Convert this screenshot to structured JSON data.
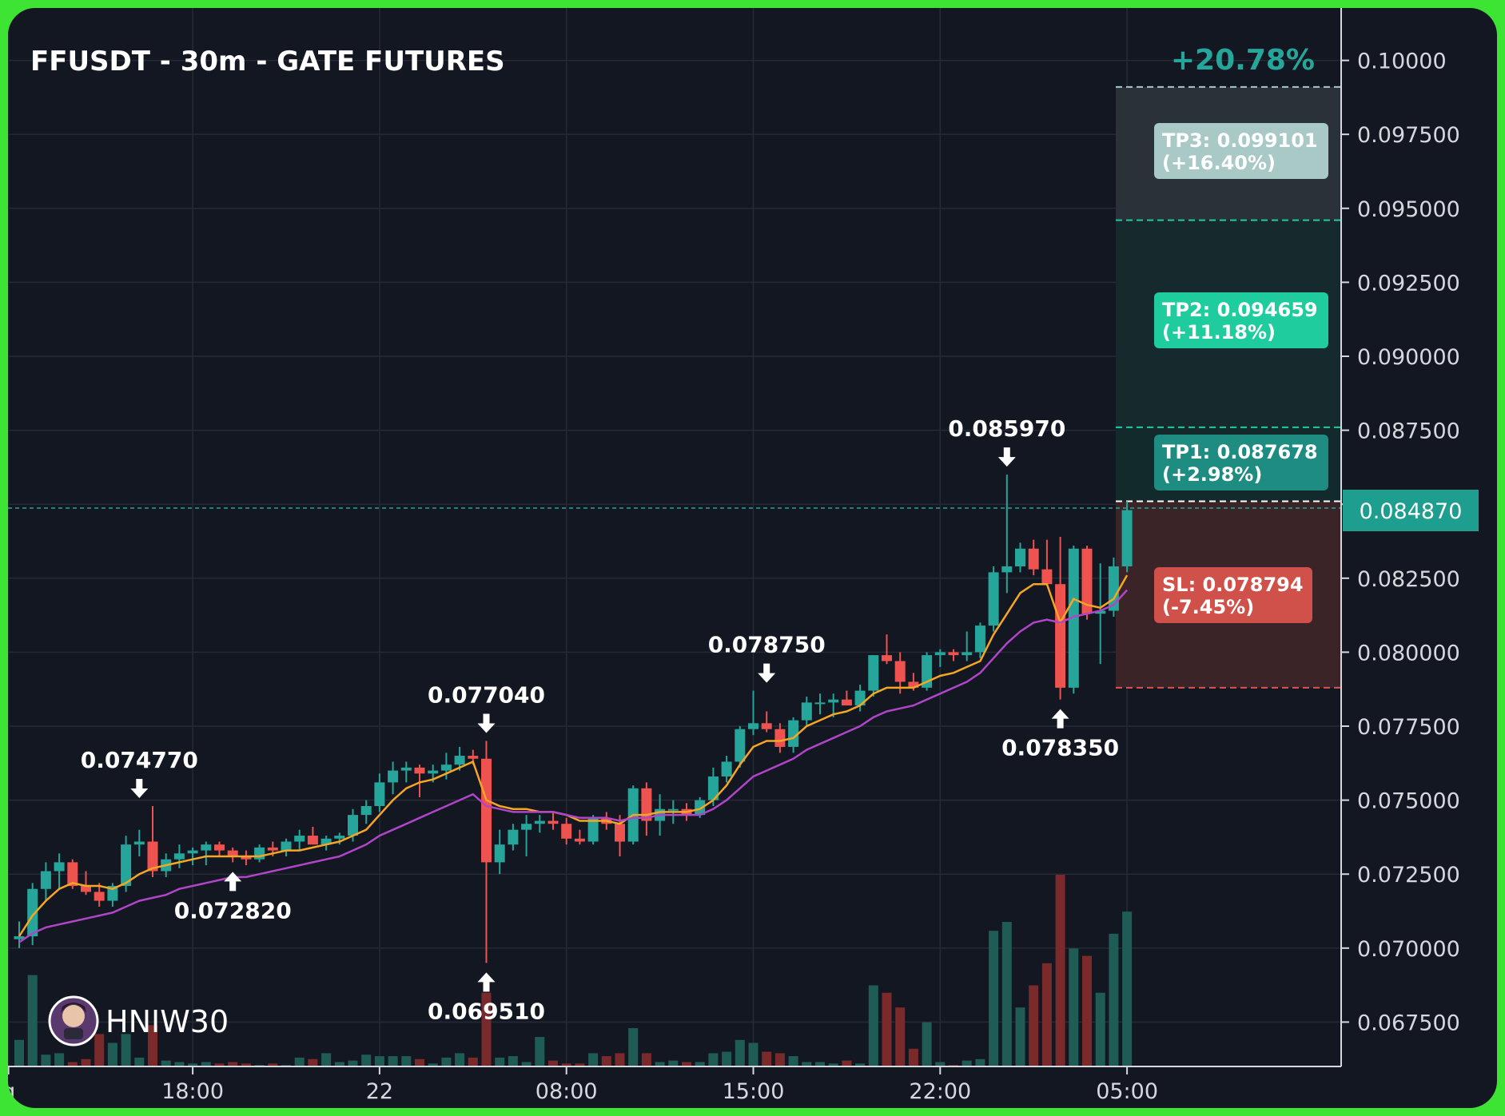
{
  "title": "FFUSDT - 30m - GATE FUTURES",
  "watermark": "HNIW30",
  "colors": {
    "up": "#26a69a",
    "down": "#ef5350",
    "ema_fast": "#f5a623",
    "ema_slow": "#b045c8",
    "tp": "#1fcc9e",
    "sl": "#e0524d",
    "background": "#131722"
  },
  "chart_data": {
    "type": "candlestick",
    "symbol": "FFUSDT",
    "timeframe": "30m",
    "exchange": "GATE FUTURES",
    "ylim": [
      0.066,
      0.1015
    ],
    "y_ticks": [
      "0.10000",
      "0.097500",
      "0.095000",
      "0.092500",
      "0.090000",
      "0.087500",
      "0.085000",
      "0.082500",
      "0.080000",
      "0.077500",
      "0.075000",
      "0.072500",
      "0.070000",
      "0.067500"
    ],
    "x_ticks": [
      {
        "label": "g",
        "index": -0.8
      },
      {
        "label": "18:00",
        "index": 13
      },
      {
        "label": "22",
        "index": 27
      },
      {
        "label": "08:00",
        "index": 41
      },
      {
        "label": "15:00",
        "index": 55
      },
      {
        "label": "22:00",
        "index": 69
      },
      {
        "label": "05:00",
        "index": 83
      }
    ],
    "last_price": "0.084870",
    "candles": [
      [
        0.0703,
        0.0709,
        0.07,
        0.0704,
        0.18
      ],
      [
        0.0704,
        0.0722,
        0.0701,
        0.072,
        0.62
      ],
      [
        0.072,
        0.0729,
        0.0716,
        0.0726,
        0.08
      ],
      [
        0.0726,
        0.0732,
        0.072,
        0.0729,
        0.09
      ],
      [
        0.0729,
        0.073,
        0.072,
        0.0721,
        0.03
      ],
      [
        0.0721,
        0.0726,
        0.0718,
        0.0719,
        0.05
      ],
      [
        0.0719,
        0.0722,
        0.0714,
        0.0716,
        0.22
      ],
      [
        0.0716,
        0.0722,
        0.0714,
        0.0721,
        0.16
      ],
      [
        0.0721,
        0.0738,
        0.0719,
        0.0735,
        0.22
      ],
      [
        0.0735,
        0.074,
        0.0731,
        0.0736,
        0.06
      ],
      [
        0.0736,
        0.0748,
        0.0724,
        0.0726,
        0.28
      ],
      [
        0.0726,
        0.0732,
        0.0724,
        0.073,
        0.04
      ],
      [
        0.073,
        0.0735,
        0.0727,
        0.0732,
        0.03
      ],
      [
        0.0732,
        0.0734,
        0.0728,
        0.0733,
        0.02
      ],
      [
        0.0733,
        0.0736,
        0.0728,
        0.0735,
        0.03
      ],
      [
        0.0735,
        0.0736,
        0.0731,
        0.0733,
        0.02
      ],
      [
        0.0733,
        0.0734,
        0.0729,
        0.0731,
        0.03
      ],
      [
        0.0731,
        0.0733,
        0.0728,
        0.073,
        0.02
      ],
      [
        0.073,
        0.0735,
        0.0729,
        0.0734,
        0.01
      ],
      [
        0.0734,
        0.0736,
        0.0731,
        0.0733,
        0.02
      ],
      [
        0.0733,
        0.0737,
        0.0731,
        0.0736,
        0.01
      ],
      [
        0.0736,
        0.074,
        0.0733,
        0.0738,
        0.06
      ],
      [
        0.0738,
        0.0741,
        0.0735,
        0.0735,
        0.05
      ],
      [
        0.0735,
        0.0738,
        0.0733,
        0.0737,
        0.09
      ],
      [
        0.0737,
        0.0739,
        0.0735,
        0.0738,
        0.03
      ],
      [
        0.0738,
        0.0747,
        0.0736,
        0.0745,
        0.04
      ],
      [
        0.0745,
        0.075,
        0.0742,
        0.0748,
        0.08
      ],
      [
        0.0748,
        0.0759,
        0.0746,
        0.0756,
        0.07
      ],
      [
        0.0756,
        0.0763,
        0.0752,
        0.076,
        0.07
      ],
      [
        0.076,
        0.0763,
        0.0756,
        0.0761,
        0.07
      ],
      [
        0.0761,
        0.0762,
        0.0751,
        0.0759,
        0.05
      ],
      [
        0.0759,
        0.0762,
        0.0756,
        0.076,
        0.02
      ],
      [
        0.076,
        0.0766,
        0.0757,
        0.0762,
        0.06
      ],
      [
        0.0762,
        0.0768,
        0.076,
        0.0765,
        0.09
      ],
      [
        0.0765,
        0.0767,
        0.0762,
        0.0764,
        0.06
      ],
      [
        0.0764,
        0.077,
        0.0695,
        0.0729,
        0.5
      ],
      [
        0.0729,
        0.074,
        0.0725,
        0.0735,
        0.06
      ],
      [
        0.0735,
        0.0742,
        0.0733,
        0.074,
        0.07
      ],
      [
        0.074,
        0.0745,
        0.0731,
        0.0742,
        0.03
      ],
      [
        0.0742,
        0.0745,
        0.0739,
        0.0743,
        0.2
      ],
      [
        0.0743,
        0.0746,
        0.074,
        0.0742,
        0.04
      ],
      [
        0.0742,
        0.0744,
        0.0735,
        0.0737,
        0.02
      ],
      [
        0.0737,
        0.074,
        0.0735,
        0.0736,
        0.02
      ],
      [
        0.0736,
        0.0745,
        0.0735,
        0.0744,
        0.09
      ],
      [
        0.0744,
        0.0746,
        0.074,
        0.0742,
        0.07
      ],
      [
        0.0742,
        0.0745,
        0.0731,
        0.0736,
        0.09
      ],
      [
        0.0736,
        0.0755,
        0.0735,
        0.0754,
        0.26
      ],
      [
        0.0754,
        0.0756,
        0.0738,
        0.0743,
        0.09
      ],
      [
        0.0743,
        0.0752,
        0.0738,
        0.0747,
        0.03
      ],
      [
        0.0747,
        0.075,
        0.0742,
        0.0747,
        0.04
      ],
      [
        0.0747,
        0.0749,
        0.0743,
        0.0745,
        0.03
      ],
      [
        0.0745,
        0.0751,
        0.0744,
        0.075,
        0.03
      ],
      [
        0.075,
        0.0761,
        0.0748,
        0.0758,
        0.09
      ],
      [
        0.0758,
        0.0765,
        0.0756,
        0.0763,
        0.1
      ],
      [
        0.0763,
        0.0775,
        0.0761,
        0.0774,
        0.18
      ],
      [
        0.0774,
        0.0787,
        0.0772,
        0.0776,
        0.16
      ],
      [
        0.0776,
        0.078,
        0.0773,
        0.0774,
        0.1
      ],
      [
        0.0774,
        0.0776,
        0.0766,
        0.0768,
        0.09
      ],
      [
        0.0768,
        0.0778,
        0.0766,
        0.0777,
        0.07
      ],
      [
        0.0777,
        0.0785,
        0.0775,
        0.0783,
        0.03
      ],
      [
        0.0783,
        0.0786,
        0.0779,
        0.0783,
        0.03
      ],
      [
        0.0783,
        0.0786,
        0.0778,
        0.0784,
        0.02
      ],
      [
        0.0784,
        0.0787,
        0.0782,
        0.0782,
        0.04
      ],
      [
        0.0782,
        0.0789,
        0.078,
        0.0787,
        0.02
      ],
      [
        0.0787,
        0.0799,
        0.0785,
        0.0799,
        0.55
      ],
      [
        0.0799,
        0.0806,
        0.0796,
        0.0797,
        0.5
      ],
      [
        0.0797,
        0.08,
        0.0786,
        0.079,
        0.4
      ],
      [
        0.079,
        0.0793,
        0.0787,
        0.0788,
        0.12
      ],
      [
        0.0788,
        0.08,
        0.0787,
        0.0799,
        0.3
      ],
      [
        0.0799,
        0.0801,
        0.0795,
        0.08,
        0.03
      ],
      [
        0.08,
        0.0801,
        0.0797,
        0.0799,
        0.01
      ],
      [
        0.0799,
        0.0807,
        0.0797,
        0.08,
        0.04
      ],
      [
        0.08,
        0.081,
        0.0798,
        0.0809,
        0.05
      ],
      [
        0.0809,
        0.0829,
        0.0807,
        0.0827,
        0.92
      ],
      [
        0.0827,
        0.086,
        0.082,
        0.0829,
        0.98
      ],
      [
        0.0829,
        0.0837,
        0.0827,
        0.0835,
        0.4
      ],
      [
        0.0835,
        0.0838,
        0.0826,
        0.0828,
        0.55
      ],
      [
        0.0828,
        0.0838,
        0.0826,
        0.0823,
        0.7
      ],
      [
        0.0823,
        0.0839,
        0.0784,
        0.0788,
        1.3
      ],
      [
        0.0788,
        0.0836,
        0.0786,
        0.0835,
        0.8
      ],
      [
        0.0835,
        0.0836,
        0.0811,
        0.0813,
        0.75
      ],
      [
        0.0813,
        0.083,
        0.0796,
        0.0814,
        0.5
      ],
      [
        0.0814,
        0.0832,
        0.0812,
        0.0829,
        0.9
      ],
      [
        0.0829,
        0.0851,
        0.0827,
        0.0848,
        1.05
      ]
    ],
    "ema_fast": [
      0.0704,
      0.0711,
      0.0716,
      0.072,
      0.0722,
      0.0721,
      0.0721,
      0.072,
      0.0722,
      0.0725,
      0.0727,
      0.0728,
      0.0729,
      0.073,
      0.0731,
      0.0731,
      0.0731,
      0.0731,
      0.0731,
      0.0732,
      0.0733,
      0.0733,
      0.0734,
      0.0735,
      0.0736,
      0.0738,
      0.074,
      0.0745,
      0.075,
      0.0754,
      0.0756,
      0.0757,
      0.0759,
      0.0761,
      0.0763,
      0.075,
      0.0748,
      0.0747,
      0.0747,
      0.0746,
      0.0746,
      0.0745,
      0.0743,
      0.0743,
      0.0743,
      0.0742,
      0.0745,
      0.0745,
      0.0746,
      0.0746,
      0.0746,
      0.0747,
      0.075,
      0.0755,
      0.0762,
      0.0768,
      0.077,
      0.077,
      0.0771,
      0.0775,
      0.0777,
      0.0779,
      0.078,
      0.0782,
      0.0786,
      0.0788,
      0.0788,
      0.0788,
      0.079,
      0.0792,
      0.0793,
      0.0795,
      0.0797,
      0.0806,
      0.0813,
      0.082,
      0.0823,
      0.0823,
      0.081,
      0.0818,
      0.0816,
      0.0815,
      0.0818,
      0.0826
    ],
    "ema_slow": [
      0.0702,
      0.0705,
      0.0707,
      0.0708,
      0.0709,
      0.071,
      0.0711,
      0.0712,
      0.0714,
      0.0716,
      0.0717,
      0.0718,
      0.072,
      0.0721,
      0.0722,
      0.0723,
      0.0724,
      0.0724,
      0.0725,
      0.0726,
      0.0727,
      0.0728,
      0.0729,
      0.073,
      0.0731,
      0.0733,
      0.0735,
      0.0738,
      0.074,
      0.0742,
      0.0744,
      0.0746,
      0.0748,
      0.075,
      0.0752,
      0.0748,
      0.0747,
      0.0746,
      0.0746,
      0.0746,
      0.0746,
      0.0745,
      0.0744,
      0.0744,
      0.0744,
      0.0743,
      0.0744,
      0.0744,
      0.0745,
      0.0745,
      0.0745,
      0.0745,
      0.0747,
      0.075,
      0.0754,
      0.0758,
      0.076,
      0.0762,
      0.0764,
      0.0767,
      0.0769,
      0.0771,
      0.0773,
      0.0775,
      0.0778,
      0.078,
      0.0781,
      0.0782,
      0.0784,
      0.0786,
      0.0788,
      0.079,
      0.0793,
      0.0798,
      0.0803,
      0.0807,
      0.081,
      0.0811,
      0.081,
      0.0812,
      0.0813,
      0.0814,
      0.0816,
      0.0821
    ],
    "annotations": [
      {
        "label": "0.074770",
        "index": 9,
        "price": 0.0748,
        "kind": "high"
      },
      {
        "label": "0.072820",
        "index": 16,
        "price": 0.0729,
        "kind": "low"
      },
      {
        "label": "0.077040",
        "index": 35,
        "price": 0.077,
        "kind": "high"
      },
      {
        "label": "0.069510",
        "index": 35,
        "price": 0.0695,
        "kind": "low"
      },
      {
        "label": "0.078750",
        "index": 56,
        "price": 0.0787,
        "kind": "high"
      },
      {
        "label": "0.085970",
        "index": 74,
        "price": 0.086,
        "kind": "high"
      },
      {
        "label": "0.078350",
        "index": 78,
        "price": 0.0784,
        "kind": "low"
      }
    ],
    "targets": {
      "entry": 0.0851,
      "pct_total": "+20.78%",
      "tp3": {
        "label": "TP3: 0.099101",
        "pct": "(+16.40%)",
        "price": 0.0991,
        "line": 0.0991
      },
      "tp2": {
        "label": "TP2: 0.094659",
        "pct": "(+11.18%)",
        "price": 0.0947,
        "line": 0.0946
      },
      "tp1": {
        "label": "TP1: 0.087678",
        "pct": "(+2.98%)",
        "price": 0.0877,
        "line": 0.0876
      },
      "sl": {
        "label": "SL: 0.078794",
        "pct": "(-7.45%)",
        "price": 0.0788,
        "line": 0.0788
      }
    }
  }
}
